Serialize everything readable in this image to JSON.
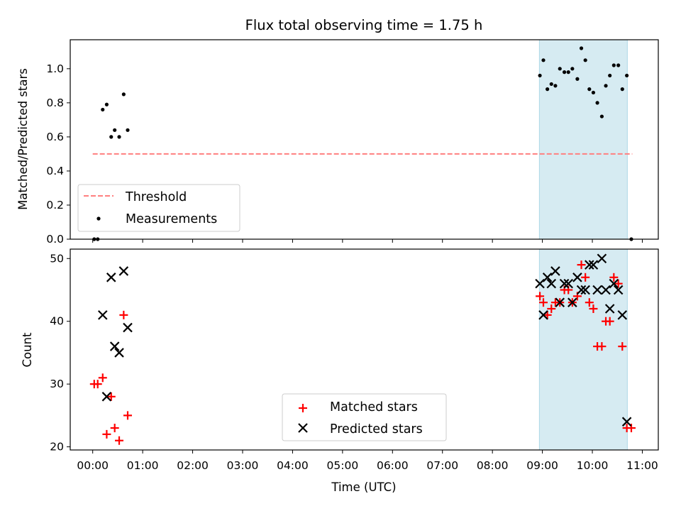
{
  "chart_data": {
    "title": "Flux total observing time = 1.75 h",
    "x_axis": {
      "label": "Time (UTC)",
      "range_hours": [
        -0.45,
        11.32
      ],
      "ticks": [
        {
          "value": 0,
          "label": "00:00"
        },
        {
          "value": 1,
          "label": "01:00"
        },
        {
          "value": 2,
          "label": "02:00"
        },
        {
          "value": 3,
          "label": "03:00"
        },
        {
          "value": 4,
          "label": "04:00"
        },
        {
          "value": 5,
          "label": "05:00"
        },
        {
          "value": 6,
          "label": "06:00"
        },
        {
          "value": 7,
          "label": "07:00"
        },
        {
          "value": 8,
          "label": "08:00"
        },
        {
          "value": 9,
          "label": "09:00"
        },
        {
          "value": 10,
          "label": "10:00"
        },
        {
          "value": 11,
          "label": "11:00"
        }
      ]
    },
    "highlight_span_hours": [
      8.94,
      10.7
    ],
    "highlight_color": "#add8e6",
    "top_panel": {
      "type": "scatter",
      "ylabel": "Matched/Predicted stars",
      "ylim": [
        0,
        1.17
      ],
      "yticks": [
        "0.0",
        "0.2",
        "0.4",
        "0.6",
        "0.8",
        "1.0"
      ],
      "threshold": {
        "name": "Threshold",
        "y": 0.5,
        "x_range": [
          0,
          10.8
        ],
        "color": "#ff7f7f"
      },
      "measurements_name": "Measurements",
      "measurements": [
        [
          0.03,
          0.0
        ],
        [
          0.1,
          0.0
        ],
        [
          0.2,
          0.76
        ],
        [
          0.28,
          0.79
        ],
        [
          0.37,
          0.6
        ],
        [
          0.44,
          0.64
        ],
        [
          0.53,
          0.6
        ],
        [
          0.62,
          0.85
        ],
        [
          0.7,
          0.64
        ],
        [
          8.95,
          0.96
        ],
        [
          9.02,
          1.05
        ],
        [
          9.1,
          0.88
        ],
        [
          9.18,
          0.91
        ],
        [
          9.26,
          0.9
        ],
        [
          9.35,
          1.0
        ],
        [
          9.44,
          0.98
        ],
        [
          9.52,
          0.98
        ],
        [
          9.6,
          1.0
        ],
        [
          9.7,
          0.94
        ],
        [
          9.78,
          1.12
        ],
        [
          9.86,
          1.05
        ],
        [
          9.94,
          0.88
        ],
        [
          10.02,
          0.86
        ],
        [
          10.1,
          0.8
        ],
        [
          10.19,
          0.72
        ],
        [
          10.27,
          0.9
        ],
        [
          10.35,
          0.96
        ],
        [
          10.43,
          1.02
        ],
        [
          10.52,
          1.02
        ],
        [
          10.6,
          0.88
        ],
        [
          10.69,
          0.96
        ],
        [
          10.78,
          0.0
        ]
      ],
      "legend_position": "lower-left"
    },
    "bottom_panel": {
      "type": "scatter",
      "ylabel": "Count",
      "ylim": [
        19.5,
        51.5
      ],
      "yticks": [
        "20",
        "30",
        "40",
        "50"
      ],
      "series": [
        {
          "name": "Matched stars",
          "marker": "+",
          "color": "#ff0000",
          "points": [
            [
              0.03,
              30
            ],
            [
              0.1,
              30
            ],
            [
              0.2,
              31
            ],
            [
              0.28,
              22
            ],
            [
              0.37,
              28
            ],
            [
              0.44,
              23
            ],
            [
              0.53,
              21
            ],
            [
              0.62,
              41
            ],
            [
              0.7,
              25
            ],
            [
              8.95,
              44
            ],
            [
              9.02,
              43
            ],
            [
              9.1,
              41
            ],
            [
              9.18,
              42
            ],
            [
              9.26,
              43
            ],
            [
              9.35,
              43
            ],
            [
              9.44,
              45
            ],
            [
              9.52,
              45
            ],
            [
              9.6,
              43
            ],
            [
              9.7,
              44
            ],
            [
              9.78,
              49
            ],
            [
              9.86,
              47
            ],
            [
              9.94,
              43
            ],
            [
              10.02,
              42
            ],
            [
              10.1,
              36
            ],
            [
              10.19,
              36
            ],
            [
              10.27,
              40
            ],
            [
              10.35,
              40
            ],
            [
              10.43,
              47
            ],
            [
              10.52,
              46
            ],
            [
              10.6,
              36
            ],
            [
              10.69,
              23
            ],
            [
              10.78,
              23
            ]
          ]
        },
        {
          "name": "Predicted stars",
          "marker": "x",
          "color": "#000000",
          "points": [
            [
              0.2,
              41
            ],
            [
              0.28,
              28
            ],
            [
              0.37,
              47
            ],
            [
              0.44,
              36
            ],
            [
              0.53,
              35
            ],
            [
              0.62,
              48
            ],
            [
              0.7,
              39
            ],
            [
              8.95,
              46
            ],
            [
              9.02,
              41
            ],
            [
              9.1,
              47
            ],
            [
              9.18,
              46
            ],
            [
              9.26,
              48
            ],
            [
              9.35,
              43
            ],
            [
              9.44,
              46
            ],
            [
              9.52,
              46
            ],
            [
              9.6,
              43
            ],
            [
              9.7,
              47
            ],
            [
              9.78,
              45
            ],
            [
              9.86,
              45
            ],
            [
              9.94,
              49
            ],
            [
              10.02,
              49
            ],
            [
              10.1,
              45
            ],
            [
              10.19,
              50
            ],
            [
              10.27,
              45
            ],
            [
              10.35,
              42
            ],
            [
              10.43,
              46
            ],
            [
              10.52,
              45
            ],
            [
              10.6,
              41
            ],
            [
              10.69,
              24
            ]
          ]
        }
      ],
      "legend_position": "lower-center"
    }
  }
}
